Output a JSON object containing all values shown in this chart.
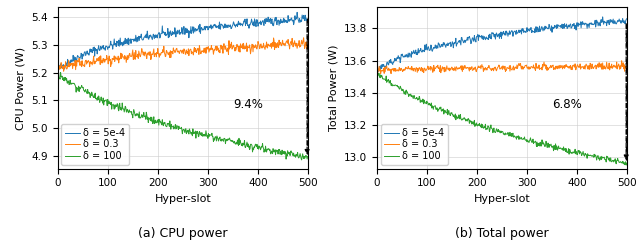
{
  "n_steps": 500,
  "seed": 42,
  "subplot_a": {
    "title": "(a) CPU power",
    "ylabel": "CPU Power (W)",
    "xlabel": "Hyper-slot",
    "ylim": [
      4.855,
      5.435
    ],
    "yticks": [
      4.9,
      5.0,
      5.1,
      5.2,
      5.3,
      5.4
    ],
    "xlim": [
      0,
      500
    ],
    "annotation": "9.4%",
    "blue_start": 5.21,
    "blue_end": 5.395,
    "orange_start": 5.215,
    "orange_end": 5.305,
    "green_start": 5.195,
    "green_end": 4.895,
    "blue_curve_k": 10.0,
    "orange_curve_k": 4.0,
    "green_curve_k": 3.0,
    "noise_blue": 0.008,
    "noise_orange": 0.009,
    "noise_green": 0.007
  },
  "subplot_b": {
    "title": "(b) Total power",
    "ylabel": "Total Power (W)",
    "xlabel": "Hyper-slot",
    "ylim": [
      12.93,
      13.93
    ],
    "yticks": [
      13.0,
      13.2,
      13.4,
      13.6,
      13.8
    ],
    "xlim": [
      0,
      500
    ],
    "annotation": "6.8%",
    "blue_start": 13.535,
    "blue_end": 13.845,
    "orange_start": 13.54,
    "orange_end": 13.565,
    "green_start": 13.525,
    "green_end": 12.965,
    "blue_curve_k": 8.0,
    "orange_curve_k": 1.5,
    "green_curve_k": 3.0,
    "noise_blue": 0.012,
    "noise_orange": 0.01,
    "noise_green": 0.009
  },
  "colors": {
    "blue": "#1f77b4",
    "orange": "#ff7f0e",
    "green": "#2ca02c"
  },
  "legend_labels": [
    "δ = 5e-4",
    "δ = 0.3",
    "δ = 100"
  ],
  "linewidth": 0.7
}
